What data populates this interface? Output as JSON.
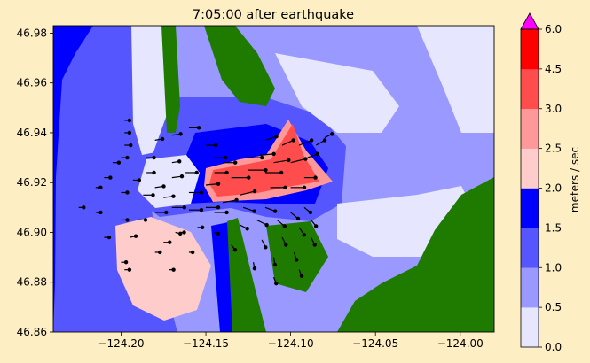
{
  "chart_data": {
    "type": "heatmap",
    "title": "7:05:00 after earthquake",
    "xlabel": "",
    "ylabel": "",
    "xlim": [
      -124.24,
      -123.98
    ],
    "ylim": [
      46.86,
      46.983
    ],
    "x_ticks": [
      -124.2,
      -124.15,
      -124.1,
      -124.05,
      -124.0
    ],
    "x_tick_labels": [
      "−124.20",
      "−124.15",
      "−124.10",
      "−124.05",
      "−124.00"
    ],
    "y_ticks": [
      46.86,
      46.88,
      46.9,
      46.92,
      46.94,
      46.96,
      46.98
    ],
    "y_tick_labels": [
      "46.86",
      "46.88",
      "46.90",
      "46.92",
      "46.94",
      "46.96",
      "46.98"
    ],
    "colorbar": {
      "label": "meters / sec",
      "levels": [
        0.0,
        0.5,
        1.0,
        1.5,
        2.0,
        2.5,
        3.0,
        4.5,
        6.0
      ],
      "level_labels": [
        "0.0",
        "0.5",
        "1.0",
        "1.5",
        "2.0",
        "2.5",
        "3.0",
        "4.5",
        "6.0"
      ],
      "colors": [
        "#e6e6ff",
        "#9999ff",
        "#5656ff",
        "#0000ff",
        "#ffcccc",
        "#ff9999",
        "#ff4d4d",
        "#ff0000"
      ],
      "extend_color": "#ff00ff"
    },
    "land_color": "#1f7a00",
    "quiver": [
      [
        -124.198,
        46.945,
        0.4,
        0
      ],
      [
        -124.198,
        46.94,
        0.4,
        0
      ],
      [
        -124.198,
        46.935,
        0.5,
        0
      ],
      [
        -124.2,
        46.93,
        0.5,
        0
      ],
      [
        -124.205,
        46.928,
        0.5,
        0
      ],
      [
        -124.21,
        46.922,
        0.5,
        0
      ],
      [
        -124.193,
        46.921,
        0.5,
        0
      ],
      [
        -124.2,
        46.916,
        0.5,
        0
      ],
      [
        -124.185,
        46.93,
        0.6,
        0
      ],
      [
        -124.18,
        46.937,
        0.6,
        0.1
      ],
      [
        -124.17,
        46.939,
        0.7,
        0.1
      ],
      [
        -124.16,
        46.942,
        0.8,
        0
      ],
      [
        -124.17,
        46.928,
        0.6,
        0.1
      ],
      [
        -124.185,
        46.924,
        0.6,
        0
      ],
      [
        -124.18,
        46.918,
        0.7,
        0.1
      ],
      [
        -124.187,
        46.915,
        0.8,
        0
      ],
      [
        -124.175,
        46.914,
        0.8,
        0.1
      ],
      [
        -124.17,
        46.922,
        0.8,
        0.1
      ],
      [
        -124.162,
        46.924,
        0.9,
        0
      ],
      [
        -124.16,
        46.916,
        1,
        0
      ],
      [
        -124.15,
        46.919,
        1,
        0.1
      ],
      [
        -124.18,
        46.908,
        0.9,
        0
      ],
      [
        -124.17,
        46.91,
        1,
        0
      ],
      [
        -124.16,
        46.909,
        1,
        0
      ],
      [
        -124.15,
        46.91,
        1,
        0
      ],
      [
        -124.145,
        46.908,
        1,
        0
      ],
      [
        -124.14,
        46.912,
        1.1,
        0.2
      ],
      [
        -124.13,
        46.915,
        1.2,
        0.3
      ],
      [
        -124.135,
        46.922,
        1.4,
        0
      ],
      [
        -124.125,
        46.925,
        1.4,
        0
      ],
      [
        -124.115,
        46.924,
        1.3,
        0
      ],
      [
        -124.11,
        46.928,
        1.2,
        0.2
      ],
      [
        -124.1,
        46.928,
        1.2,
        0.3
      ],
      [
        -124.095,
        46.935,
        1,
        0.4
      ],
      [
        -124.105,
        46.935,
        0.9,
        0.4
      ],
      [
        -124.115,
        46.937,
        0.9,
        0.3
      ],
      [
        -124.118,
        46.931,
        1.1,
        0.1
      ],
      [
        -124.125,
        46.93,
        1.1,
        0
      ],
      [
        -124.14,
        46.928,
        1,
        0
      ],
      [
        -124.145,
        46.924,
        1,
        0
      ],
      [
        -124.145,
        46.93,
        0.9,
        0
      ],
      [
        -124.15,
        46.935,
        0.8,
        0
      ],
      [
        -124.112,
        46.918,
        1.2,
        0
      ],
      [
        -124.1,
        46.918,
        1.1,
        0
      ],
      [
        -124.092,
        46.922,
        0.9,
        0
      ],
      [
        -124.09,
        46.93,
        0.8,
        0.3
      ],
      [
        -124.085,
        46.935,
        0.7,
        0.4
      ],
      [
        -124.08,
        46.938,
        0.6,
        0.3
      ],
      [
        -124.128,
        46.91,
        0.9,
        -0.3
      ],
      [
        -124.12,
        46.905,
        0.8,
        -0.4
      ],
      [
        -124.115,
        46.91,
        0.8,
        -0.3
      ],
      [
        -124.108,
        46.905,
        0.6,
        -0.5
      ],
      [
        -124.1,
        46.908,
        0.6,
        -0.5
      ],
      [
        -124.092,
        46.91,
        0.5,
        -0.4
      ],
      [
        -124.095,
        46.902,
        0.4,
        -0.6
      ],
      [
        -124.088,
        46.898,
        0.3,
        -0.6
      ],
      [
        -124.105,
        46.898,
        0.3,
        -0.6
      ],
      [
        -124.117,
        46.897,
        0.3,
        -0.6
      ],
      [
        -124.11,
        46.89,
        0.1,
        -0.6
      ],
      [
        -124.122,
        46.888,
        0.1,
        -0.5
      ],
      [
        -124.098,
        46.892,
        0.2,
        -0.6
      ],
      [
        -124.088,
        46.905,
        0.4,
        -0.5
      ],
      [
        -124.13,
        46.903,
        0.6,
        -0.3
      ],
      [
        -124.145,
        46.9,
        0.3,
        -0.1
      ],
      [
        -124.155,
        46.902,
        0.4,
        0
      ],
      [
        -124.168,
        46.9,
        0.4,
        -0.1
      ],
      [
        -124.175,
        46.896,
        0.5,
        0
      ],
      [
        -124.19,
        46.905,
        0.6,
        0
      ],
      [
        -124.2,
        46.905,
        0.5,
        0
      ],
      [
        -124.195,
        46.898,
        0.5,
        0.1
      ],
      [
        -124.21,
        46.898,
        0.4,
        0
      ],
      [
        -124.215,
        46.908,
        0.4,
        0
      ],
      [
        -124.225,
        46.91,
        0.4,
        0
      ],
      [
        -124.215,
        46.918,
        0.4,
        0
      ],
      [
        -124.2,
        46.888,
        0.4,
        0
      ],
      [
        -124.198,
        46.885,
        0.4,
        0
      ],
      [
        -124.172,
        46.885,
        0.4,
        0
      ],
      [
        -124.18,
        46.892,
        0.4,
        0
      ],
      [
        -124.165,
        46.9,
        0.3,
        0
      ],
      [
        -124.16,
        46.892,
        0.3,
        0
      ],
      [
        -124.11,
        46.882,
        0.2,
        -0.5
      ],
      [
        -124.095,
        46.885,
        0.2,
        -0.5
      ],
      [
        -124.135,
        46.895,
        0.3,
        -0.4
      ]
    ]
  }
}
